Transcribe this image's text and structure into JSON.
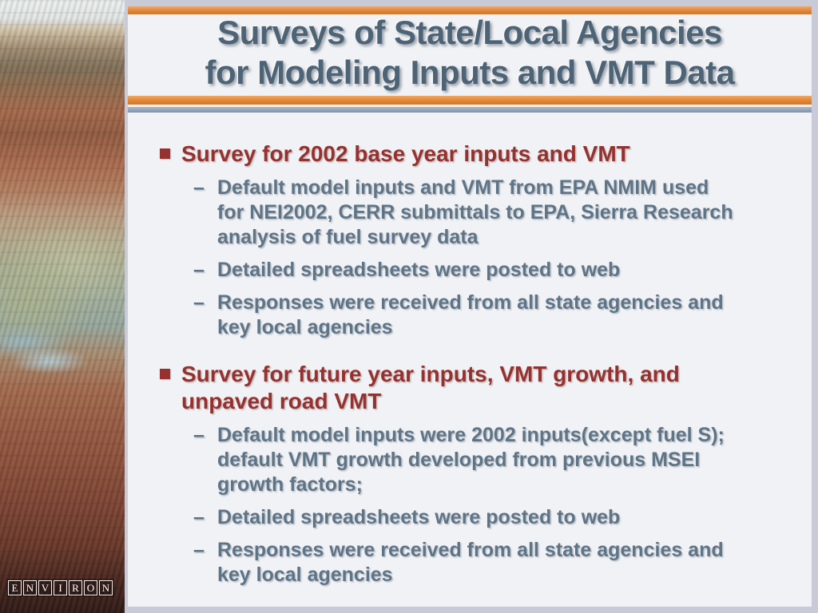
{
  "slide": {
    "title": {
      "line1": "Surveys of State/Local Agencies",
      "line2": "for Modeling Inputs and VMT Data"
    },
    "bullets": [
      {
        "label": "Survey for 2002 base year inputs and VMT",
        "sub": [
          "Default model inputs and VMT from EPA NMIM used\nfor NEI2002, CERR submittals to EPA, Sierra Research\nanalysis of fuel survey data",
          "Detailed spreadsheets were posted to web",
          "Responses were received from all state agencies and\nkey local agencies"
        ]
      },
      {
        "label": "Survey for future year inputs, VMT growth, and\nunpaved road VMT",
        "sub": [
          "Default model inputs were 2002 inputs(except fuel S);\ndefault VMT growth developed from previous MSEI\ngrowth factors;",
          "Detailed spreadsheets were posted to web",
          "Responses were received from all state agencies and\nkey local agencies"
        ]
      }
    ],
    "logo_text": "ENVIRON"
  },
  "markers": {
    "dash": "–"
  },
  "colors": {
    "accent_orange": "#e0863a",
    "accent_orange_dark": "#d4751f",
    "accent_blue_bar": "#92a3b8",
    "title_text": "#4d6376",
    "bullet_maroon": "#97302e",
    "body_slate": "#5e7487",
    "panel_bg": "#f1f2f5",
    "frame_bg": "#c8cad7"
  }
}
